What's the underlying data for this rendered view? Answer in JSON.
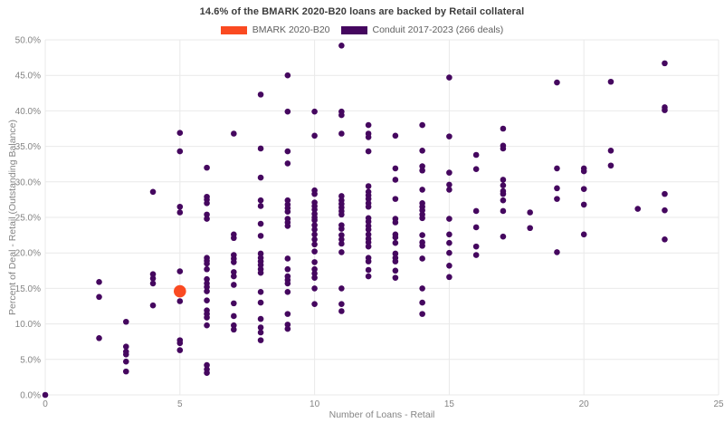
{
  "title": "14.6% of the BMARK 2020-B20 loans are backed by Retail collateral",
  "legend": {
    "items": [
      {
        "label": "BMARK 2020-B20",
        "color": "#fa4a21"
      },
      {
        "label": "Conduit 2017-2023 (266 deals)",
        "color": "#45075f"
      }
    ]
  },
  "chart_data": {
    "type": "scatter",
    "title": "14.6% of the BMARK 2020-B20 loans are backed by Retail collateral",
    "xlabel": "Number of Loans - Retail",
    "ylabel": "Percent of Deal - Retail (Outstanding Balance)",
    "xlim": [
      0,
      25
    ],
    "ylim": [
      0,
      50
    ],
    "grid": true,
    "legend_position": "top-center",
    "x_ticks": [
      0,
      5,
      10,
      15,
      20,
      25
    ],
    "y_tick_values": [
      0,
      5,
      10,
      15,
      20,
      25,
      30,
      35,
      40,
      45,
      50
    ],
    "y_tick_labels": [
      "0.0%",
      "5.0%",
      "10.0%",
      "15.0%",
      "20.0%",
      "25.0%",
      "30.0%",
      "35.0%",
      "40.0%",
      "45.0%",
      "50.0%"
    ],
    "grid_color": "#e9e9e9",
    "tick_color": "#848484",
    "series": [
      {
        "name": "Conduit 2017-2023 (266 deals)",
        "color": "#45075f",
        "marker_size": 3.3,
        "points": [
          [
            0,
            0.0
          ],
          [
            2,
            15.9
          ],
          [
            2,
            13.8
          ],
          [
            2,
            8.0
          ],
          [
            3,
            10.3
          ],
          [
            3,
            6.8
          ],
          [
            3,
            6.1
          ],
          [
            3,
            5.7
          ],
          [
            3,
            4.7
          ],
          [
            3,
            3.3
          ],
          [
            4,
            28.6
          ],
          [
            4,
            17.0
          ],
          [
            4,
            16.4
          ],
          [
            4,
            15.7
          ],
          [
            4,
            12.6
          ],
          [
            5,
            36.9
          ],
          [
            5,
            34.3
          ],
          [
            5,
            26.5
          ],
          [
            5,
            25.7
          ],
          [
            5,
            17.4
          ],
          [
            5,
            13.2
          ],
          [
            5,
            7.7
          ],
          [
            5,
            7.3
          ],
          [
            5,
            6.3
          ],
          [
            6,
            32.0
          ],
          [
            6,
            27.9
          ],
          [
            6,
            27.5
          ],
          [
            6,
            27.0
          ],
          [
            6,
            25.4
          ],
          [
            6,
            24.8
          ],
          [
            6,
            19.3
          ],
          [
            6,
            18.9
          ],
          [
            6,
            18.5
          ],
          [
            6,
            17.7
          ],
          [
            6,
            16.3
          ],
          [
            6,
            15.7
          ],
          [
            6,
            15.2
          ],
          [
            6,
            14.6
          ],
          [
            6,
            13.3
          ],
          [
            6,
            11.9
          ],
          [
            6,
            11.4
          ],
          [
            6,
            10.9
          ],
          [
            6,
            9.8
          ],
          [
            6,
            4.2
          ],
          [
            6,
            3.6
          ],
          [
            6,
            3.1
          ],
          [
            7,
            36.8
          ],
          [
            7,
            22.6
          ],
          [
            7,
            22.1
          ],
          [
            7,
            19.7
          ],
          [
            7,
            19.2
          ],
          [
            7,
            18.7
          ],
          [
            7,
            17.3
          ],
          [
            7,
            16.7
          ],
          [
            7,
            15.5
          ],
          [
            7,
            12.9
          ],
          [
            7,
            11.1
          ],
          [
            7,
            9.8
          ],
          [
            7,
            9.2
          ],
          [
            8,
            42.3
          ],
          [
            8,
            34.7
          ],
          [
            8,
            30.6
          ],
          [
            8,
            27.4
          ],
          [
            8,
            26.6
          ],
          [
            8,
            24.1
          ],
          [
            8,
            22.4
          ],
          [
            8,
            19.9
          ],
          [
            8,
            19.3
          ],
          [
            8,
            18.8
          ],
          [
            8,
            18.3
          ],
          [
            8,
            17.7
          ],
          [
            8,
            17.2
          ],
          [
            8,
            14.5
          ],
          [
            8,
            13.0
          ],
          [
            8,
            10.7
          ],
          [
            8,
            9.5
          ],
          [
            8,
            8.8
          ],
          [
            8,
            7.7
          ],
          [
            9,
            45.0
          ],
          [
            9,
            39.9
          ],
          [
            9,
            34.3
          ],
          [
            9,
            32.6
          ],
          [
            9,
            27.4
          ],
          [
            9,
            26.8
          ],
          [
            9,
            26.3
          ],
          [
            9,
            25.8
          ],
          [
            9,
            24.8
          ],
          [
            9,
            24.3
          ],
          [
            9,
            23.8
          ],
          [
            9,
            19.2
          ],
          [
            9,
            17.7
          ],
          [
            9,
            16.7
          ],
          [
            9,
            16.2
          ],
          [
            9,
            15.7
          ],
          [
            9,
            14.5
          ],
          [
            9,
            11.4
          ],
          [
            9,
            9.9
          ],
          [
            9,
            9.3
          ],
          [
            10,
            39.9
          ],
          [
            10,
            36.5
          ],
          [
            10,
            28.8
          ],
          [
            10,
            28.3
          ],
          [
            10,
            27.1
          ],
          [
            10,
            26.6
          ],
          [
            10,
            26.1
          ],
          [
            10,
            25.5
          ],
          [
            10,
            25.0
          ],
          [
            10,
            24.6
          ],
          [
            10,
            23.9
          ],
          [
            10,
            23.3
          ],
          [
            10,
            22.6
          ],
          [
            10,
            21.9
          ],
          [
            10,
            21.2
          ],
          [
            10,
            20.2
          ],
          [
            10,
            18.7
          ],
          [
            10,
            17.7
          ],
          [
            10,
            17.1
          ],
          [
            10,
            16.5
          ],
          [
            10,
            15.0
          ],
          [
            10,
            12.8
          ],
          [
            11,
            49.2
          ],
          [
            11,
            39.9
          ],
          [
            11,
            39.4
          ],
          [
            11,
            36.8
          ],
          [
            11,
            28.0
          ],
          [
            11,
            27.4
          ],
          [
            11,
            26.9
          ],
          [
            11,
            26.4
          ],
          [
            11,
            25.9
          ],
          [
            11,
            25.4
          ],
          [
            11,
            23.9
          ],
          [
            11,
            23.4
          ],
          [
            11,
            22.5
          ],
          [
            11,
            21.9
          ],
          [
            11,
            21.3
          ],
          [
            11,
            20.1
          ],
          [
            11,
            15.0
          ],
          [
            11,
            12.8
          ],
          [
            11,
            11.8
          ],
          [
            12,
            38.0
          ],
          [
            12,
            36.8
          ],
          [
            12,
            36.3
          ],
          [
            12,
            34.3
          ],
          [
            12,
            29.4
          ],
          [
            12,
            28.6
          ],
          [
            12,
            28.1
          ],
          [
            12,
            27.6
          ],
          [
            12,
            27.0
          ],
          [
            12,
            26.5
          ],
          [
            12,
            24.9
          ],
          [
            12,
            24.4
          ],
          [
            12,
            23.8
          ],
          [
            12,
            23.3
          ],
          [
            12,
            22.6
          ],
          [
            12,
            22.0
          ],
          [
            12,
            21.5
          ],
          [
            12,
            20.9
          ],
          [
            12,
            19.3
          ],
          [
            12,
            18.8
          ],
          [
            12,
            17.6
          ],
          [
            12,
            16.7
          ],
          [
            13,
            36.5
          ],
          [
            13,
            31.9
          ],
          [
            13,
            30.3
          ],
          [
            13,
            27.6
          ],
          [
            13,
            24.8
          ],
          [
            13,
            24.3
          ],
          [
            13,
            22.6
          ],
          [
            13,
            22.2
          ],
          [
            13,
            21.4
          ],
          [
            13,
            19.9
          ],
          [
            13,
            19.3
          ],
          [
            13,
            18.8
          ],
          [
            13,
            17.5
          ],
          [
            13,
            16.5
          ],
          [
            14,
            38.0
          ],
          [
            14,
            34.4
          ],
          [
            14,
            32.2
          ],
          [
            14,
            31.6
          ],
          [
            14,
            28.9
          ],
          [
            14,
            27.0
          ],
          [
            14,
            26.5
          ],
          [
            14,
            26.0
          ],
          [
            14,
            25.4
          ],
          [
            14,
            24.9
          ],
          [
            14,
            22.5
          ],
          [
            14,
            21.5
          ],
          [
            14,
            21.0
          ],
          [
            14,
            19.2
          ],
          [
            14,
            15.0
          ],
          [
            14,
            13.0
          ],
          [
            14,
            11.4
          ],
          [
            15,
            44.7
          ],
          [
            15,
            36.4
          ],
          [
            15,
            31.3
          ],
          [
            15,
            29.6
          ],
          [
            15,
            28.9
          ],
          [
            15,
            24.8
          ],
          [
            15,
            22.6
          ],
          [
            15,
            21.4
          ],
          [
            15,
            20.0
          ],
          [
            15,
            18.2
          ],
          [
            15,
            16.6
          ],
          [
            16,
            33.8
          ],
          [
            16,
            31.8
          ],
          [
            16,
            25.9
          ],
          [
            16,
            23.6
          ],
          [
            16,
            20.9
          ],
          [
            16,
            19.7
          ],
          [
            17,
            37.5
          ],
          [
            17,
            35.1
          ],
          [
            17,
            34.7
          ],
          [
            17,
            30.3
          ],
          [
            17,
            29.5
          ],
          [
            17,
            28.7
          ],
          [
            17,
            28.3
          ],
          [
            17,
            27.4
          ],
          [
            17,
            25.9
          ],
          [
            17,
            22.3
          ],
          [
            18,
            25.7
          ],
          [
            18,
            23.5
          ],
          [
            19,
            44.0
          ],
          [
            19,
            31.9
          ],
          [
            19,
            29.1
          ],
          [
            19,
            27.6
          ],
          [
            19,
            20.1
          ],
          [
            20,
            31.9
          ],
          [
            20,
            31.5
          ],
          [
            20,
            29.0
          ],
          [
            20,
            26.8
          ],
          [
            20,
            22.6
          ],
          [
            21,
            44.1
          ],
          [
            21,
            34.4
          ],
          [
            21,
            32.3
          ],
          [
            22,
            26.2
          ],
          [
            23,
            46.7
          ],
          [
            23,
            40.5
          ],
          [
            23,
            40.1
          ],
          [
            23,
            28.3
          ],
          [
            23,
            26.0
          ],
          [
            23,
            21.9
          ]
        ]
      },
      {
        "name": "BMARK 2020-B20",
        "color": "#fa4a21",
        "marker_size": 6.8,
        "points": [
          [
            5,
            14.6
          ]
        ]
      }
    ]
  }
}
